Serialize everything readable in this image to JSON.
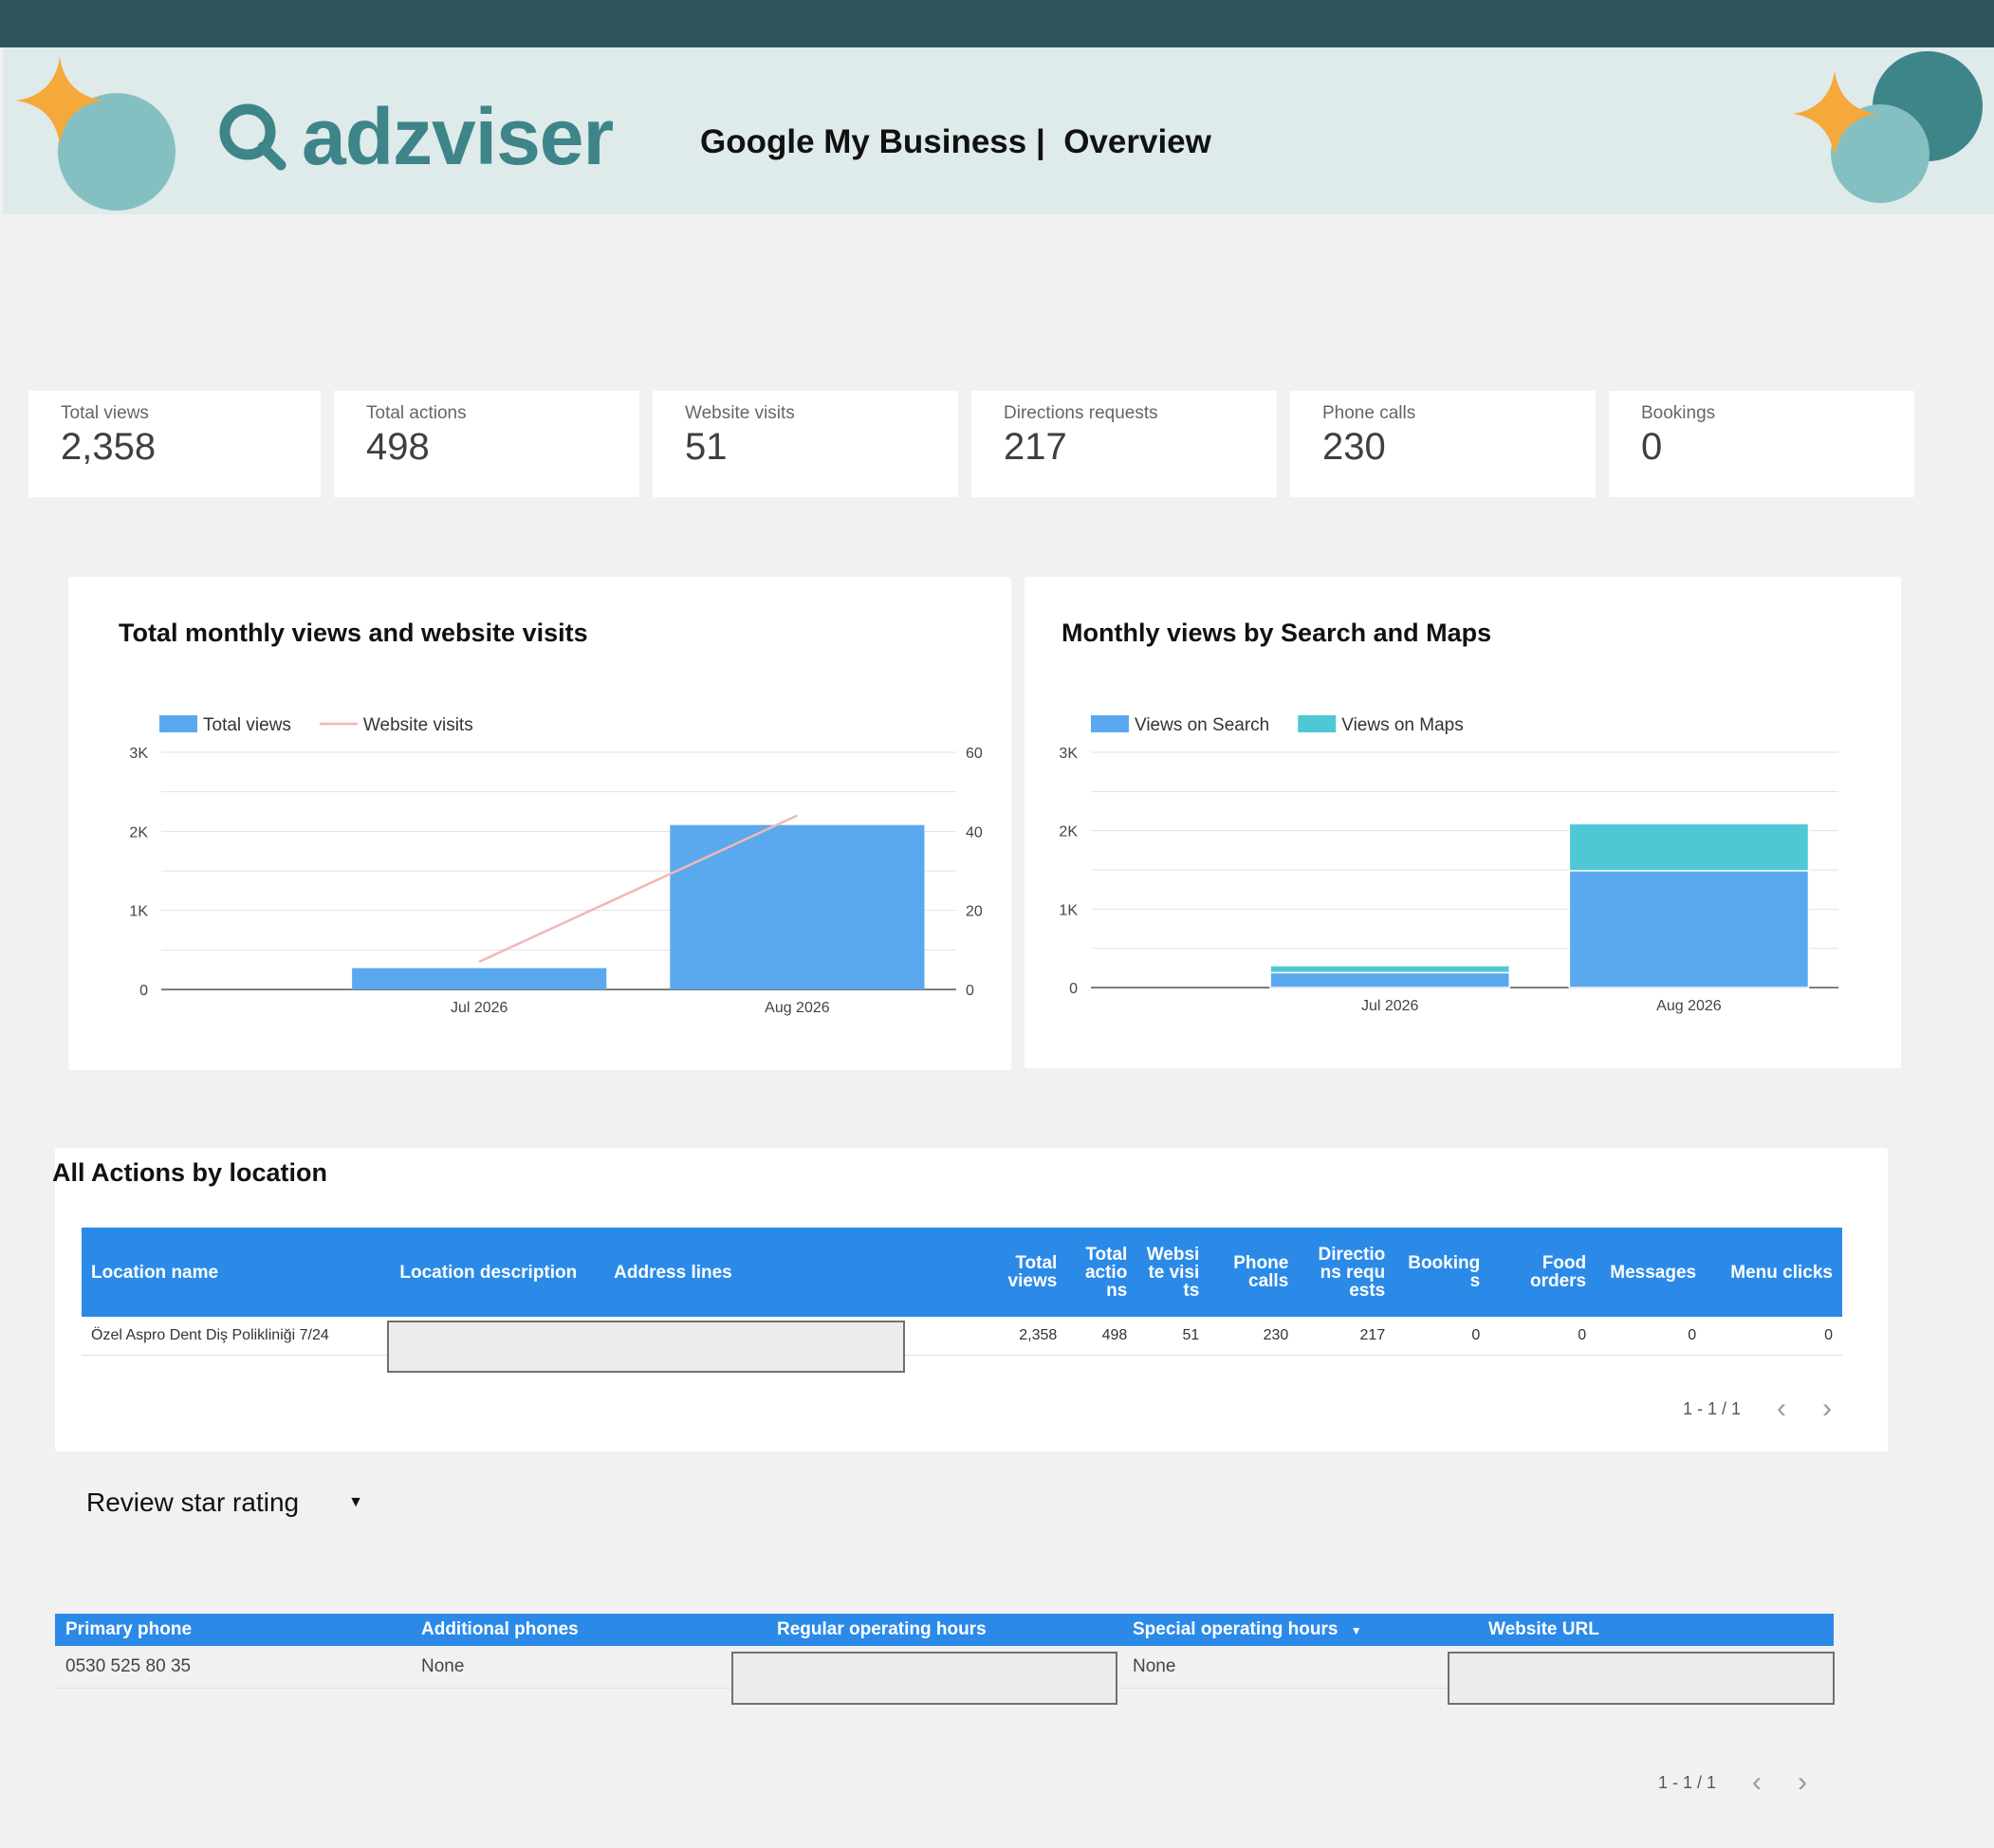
{
  "header": {
    "brand": "adzviser",
    "title": "Google My Business |  Overview"
  },
  "colors": {
    "topbar": "#2d5559",
    "banner": "#dfeaea",
    "brand": "#3d8589",
    "bar_blue": "#5aa9ef",
    "bar_cyan": "#4fc8d6",
    "line_pink": "#f1b7b7",
    "table_header": "#2b8ae8"
  },
  "kpis": [
    {
      "label": "Total views",
      "value": "2,358"
    },
    {
      "label": "Total actions",
      "value": "498"
    },
    {
      "label": "Website visits",
      "value": "51"
    },
    {
      "label": "Directions requests",
      "value": "217"
    },
    {
      "label": "Phone calls",
      "value": "230"
    },
    {
      "label": "Bookings",
      "value": "0"
    }
  ],
  "chart_data": [
    {
      "type": "bar",
      "title": "Total monthly views and website visits",
      "categories": [
        "Jul 2026",
        "Aug 2026"
      ],
      "series": [
        {
          "name": "Total views",
          "type": "bar",
          "axis": "left",
          "values": [
            270,
            2080
          ]
        },
        {
          "name": "Website visits",
          "type": "line",
          "axis": "right",
          "values": [
            7,
            44
          ]
        }
      ],
      "y_left": {
        "min": 0,
        "max": 3000,
        "ticks": [
          "0",
          "1K",
          "2K",
          "3K"
        ]
      },
      "y_right": {
        "min": 0,
        "max": 60,
        "ticks": [
          "0",
          "20",
          "40",
          "60"
        ]
      },
      "legend": "top-left",
      "grid": true
    },
    {
      "type": "bar",
      "stacked": true,
      "title": "Monthly views by Search and Maps",
      "categories": [
        "Jul 2026",
        "Aug 2026"
      ],
      "series": [
        {
          "name": "Views on Search",
          "values": [
            190,
            1490
          ]
        },
        {
          "name": "Views on Maps",
          "values": [
            90,
            600
          ]
        }
      ],
      "y_left": {
        "min": 0,
        "max": 3000,
        "ticks": [
          "0",
          "1K",
          "2K",
          "3K"
        ]
      },
      "legend": "top-left",
      "grid": true
    }
  ],
  "actions_table": {
    "title": "All Actions by location",
    "headers": [
      "Location name",
      "Location description",
      "Address lines",
      "Total views",
      "Total actions",
      "Website visits",
      "Phone calls",
      "Directions requests",
      "Bookings",
      "Food orders",
      "Messages",
      "Menu clicks"
    ],
    "rows": [
      [
        "Özel Aspro Dent Diş Polikliniği 7/24",
        "",
        "",
        "2,358",
        "498",
        "51",
        "230",
        "217",
        "0",
        "0",
        "0",
        "0"
      ]
    ],
    "pager": "1 - 1 / 1"
  },
  "review_dropdown": {
    "selected": "Review star rating"
  },
  "info_table": {
    "headers": [
      "Primary phone",
      "Additional phones",
      "Regular operating hours",
      "Special operating hours",
      "Website URL"
    ],
    "sort_indicator": "▼",
    "rows": [
      [
        "0530 525 80 35",
        "None",
        "",
        "None",
        ""
      ]
    ],
    "pager": "1 - 1 / 1"
  }
}
